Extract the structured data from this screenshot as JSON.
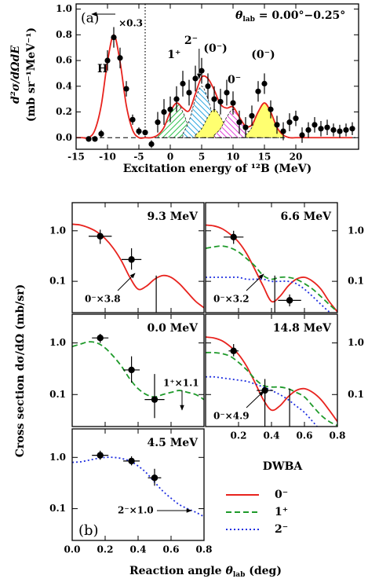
{
  "chart_data": [
    {
      "type": "spectrum",
      "label": "(a)",
      "title": {
        "symbol": "θ",
        "sub": "lab",
        "text": " = 0.00°−0.25°"
      },
      "xlabel": "Excitation energy of ¹²B (MeV)",
      "ylabel": [
        "d²σ/dΩdE",
        "(mb sr⁻¹MeV⁻¹)"
      ],
      "xlim": [
        -15,
        30
      ],
      "xticks": [
        -15,
        -10,
        -5,
        0,
        5,
        10,
        15,
        20
      ],
      "ylim": [
        -0.09,
        1.04
      ],
      "yticks": [
        {
          "value": 0,
          "label": "0.0"
        },
        0.2,
        0.4,
        0.6,
        0.8,
        {
          "value": 1,
          "label": "1.0"
        }
      ],
      "scale_note": {
        "label": "×0.3",
        "x": -4
      },
      "peak_label": "H",
      "data": {
        "x": [
          -13,
          -12,
          -11,
          -10,
          -9,
          -8,
          -7,
          -6,
          -5,
          -4,
          -3,
          -2,
          -1,
          0,
          1,
          2,
          3,
          4,
          5,
          6,
          7,
          8,
          9,
          10,
          11,
          12,
          13,
          14,
          15,
          16,
          17,
          18,
          19,
          20,
          21,
          22,
          23,
          24,
          25,
          26,
          27,
          28,
          29
        ],
        "values": [
          -0.01,
          -0.01,
          0.03,
          0.6,
          0.78,
          0.62,
          0.38,
          0.14,
          0.05,
          0.04,
          -0.05,
          0.12,
          0.2,
          0.22,
          0.3,
          0.42,
          0.35,
          0.46,
          0.52,
          0.4,
          0.3,
          0.28,
          0.35,
          0.27,
          0.12,
          0.08,
          0.17,
          0.36,
          0.42,
          0.22,
          0.1,
          0.05,
          0.12,
          0.15,
          0.02,
          0.06,
          0.1,
          0.07,
          0.08,
          0.06,
          0.05,
          0.06,
          0.07
        ],
        "errors": [
          0.02,
          0.02,
          0.03,
          0.08,
          0.08,
          0.08,
          0.06,
          0.04,
          0.03,
          0.02,
          0.03,
          0.08,
          0.1,
          0.1,
          0.1,
          0.1,
          0.1,
          0.1,
          0.1,
          0.1,
          0.1,
          0.1,
          0.1,
          0.09,
          0.09,
          0.08,
          0.08,
          0.08,
          0.08,
          0.07,
          0.07,
          0.07,
          0.07,
          0.06,
          0.06,
          0.06,
          0.06,
          0.06,
          0.06,
          0.05,
          0.05,
          0.05,
          0.05
        ]
      },
      "fit": {
        "color": "#e8231e",
        "x": [
          -15,
          -14,
          -13,
          -12,
          -11,
          -10,
          -9,
          -8,
          -7,
          -6,
          -5,
          -4,
          -3,
          -2,
          -1,
          0,
          1,
          2,
          3,
          4,
          5,
          6,
          7,
          8,
          9,
          10,
          11,
          12,
          13,
          14,
          15,
          16,
          17,
          18,
          19,
          20,
          21,
          22,
          23,
          24,
          25,
          26,
          27,
          28,
          29
        ],
        "values": [
          0,
          0,
          0,
          0.06,
          0.25,
          0.59,
          0.8,
          0.59,
          0.25,
          0.06,
          0,
          0,
          0,
          0.02,
          0.08,
          0.2,
          0.27,
          0.23,
          0.21,
          0.34,
          0.47,
          0.46,
          0.37,
          0.26,
          0.23,
          0.24,
          0.16,
          0.09,
          0.1,
          0.2,
          0.27,
          0.2,
          0.08,
          0.02,
          0,
          0,
          0,
          0,
          0,
          0,
          0,
          0,
          0,
          0,
          0
        ]
      },
      "components": [
        {
          "label": "1⁺",
          "color": "#2cc04a",
          "fill": "hatch",
          "x": [
            -2,
            -1,
            0,
            1,
            2,
            3,
            4
          ],
          "values": [
            0.02,
            0.08,
            0.2,
            0.27,
            0.2,
            0.08,
            0.02
          ]
        },
        {
          "label": "2⁻",
          "color": "#2aa6e0",
          "fill": "hatch",
          "x": [
            2,
            3,
            4,
            5,
            6,
            7,
            8
          ],
          "values": [
            0.03,
            0.13,
            0.3,
            0.4,
            0.3,
            0.13,
            0.03
          ]
        },
        {
          "label": "(0⁻)",
          "color": "#ffff70",
          "fill": "solid",
          "x": [
            4,
            5,
            6,
            7,
            8,
            9,
            10
          ],
          "values": [
            0.02,
            0.07,
            0.16,
            0.22,
            0.16,
            0.07,
            0.02
          ]
        },
        {
          "label": "0⁻",
          "color": "#e040d8",
          "fill": "hatch",
          "x": [
            7,
            8,
            9,
            10,
            11,
            12,
            13
          ],
          "values": [
            0.02,
            0.07,
            0.16,
            0.22,
            0.16,
            0.07,
            0.02
          ]
        },
        {
          "label": "(0⁻)",
          "color": "#ffff70",
          "fill": "solid",
          "x": [
            12,
            13,
            14,
            15,
            16,
            17,
            18
          ],
          "values": [
            0.02,
            0.08,
            0.2,
            0.27,
            0.2,
            0.08,
            0.02
          ]
        }
      ]
    },
    {
      "type": "angular",
      "label": "(b)",
      "xlabel": {
        "text": "Reaction angle ",
        "symbol": "θ",
        "sub": "lab",
        "after": " (deg)"
      },
      "ylabel": "Cross section dσ/dΩ (mb/sr)",
      "xlim": [
        0,
        0.8
      ],
      "xticks": [
        {
          "value": 0,
          "label": "0.0"
        },
        0.2,
        0.4,
        0.6,
        0.8
      ],
      "ylim": [
        0.024,
        3.6
      ],
      "yticks": [
        {
          "value": 1,
          "label": "1.0"
        },
        0.1
      ],
      "log_y": true,
      "legend": {
        "title": "DWBA",
        "entries": [
          {
            "name": "0⁻",
            "color": "#e8231e",
            "dash": "solid"
          },
          {
            "name": "1⁺",
            "color": "#1e9a2a",
            "dash": "dashed"
          },
          {
            "name": "2⁻",
            "color": "#2030e0",
            "dash": "dotted"
          }
        ]
      },
      "curve_x": [
        0,
        0.05,
        0.1,
        0.15,
        0.2,
        0.25,
        0.3,
        0.35,
        0.4,
        0.45,
        0.5,
        0.55,
        0.6,
        0.65,
        0.7,
        0.75,
        0.8
      ],
      "panels": [
        {
          "energy": "9.3 MeV",
          "note": "0⁻×3.8",
          "points": {
            "x": [
              0.17,
              0.36
            ],
            "xerr": [
              0.07,
              0.06
            ],
            "y": [
              0.78,
              0.27
            ],
            "ylo": [
              0.55,
              0.17
            ],
            "yhi": [
              1.05,
              0.45
            ]
          },
          "limits": {
            "x": [
              0.51
            ],
            "high": [
              0.13
            ]
          },
          "curves": [
            [
              1.35,
              1.3,
              1.15,
              0.95,
              0.7,
              0.45,
              0.25,
              0.12,
              0.07,
              0.08,
              0.11,
              0.13,
              0.12,
              0.09,
              0.06,
              0.04,
              0.03
            ],
            null,
            null
          ]
        },
        {
          "energy": "6.6 MeV",
          "note": "0⁻×3.2",
          "points": {
            "x": [
              0.17,
              0.51
            ],
            "xerr": [
              0.06,
              0.07
            ],
            "y": [
              0.75,
              0.042
            ],
            "ylo": [
              0.55,
              0.032
            ],
            "yhi": [
              1.0,
              0.055
            ]
          },
          "limits": {
            "x": [
              0.42
            ],
            "high": [
              0.13
            ]
          },
          "curves": [
            [
              1.3,
              1.25,
              1.1,
              0.85,
              0.6,
              0.35,
              0.17,
              0.08,
              0.04,
              0.05,
              0.08,
              0.11,
              0.12,
              0.1,
              0.07,
              0.04,
              0.025
            ],
            [
              0.45,
              0.48,
              0.5,
              0.46,
              0.38,
              0.28,
              0.2,
              0.13,
              0.11,
              0.12,
              0.12,
              0.11,
              0.09,
              0.07,
              0.05,
              0.035,
              0.025
            ],
            [
              0.12,
              0.12,
              0.12,
              0.12,
              0.12,
              0.11,
              0.11,
              0.11,
              0.1,
              0.1,
              0.1,
              0.09,
              0.07,
              0.05,
              0.035,
              0.025,
              0.02
            ]
          ]
        },
        {
          "energy": "0.0 MeV",
          "note": "1⁺×1.1",
          "points": {
            "x": [
              0.17,
              0.36,
              0.5
            ],
            "xerr": [
              0.05,
              0.05,
              0.06
            ],
            "y": [
              1.25,
              0.3,
              0.08
            ],
            "ylo": [
              1.0,
              0.17,
              0.035
            ],
            "yhi": [
              1.5,
              0.55,
              0.25
            ]
          },
          "limits": {
            "x": [],
            "high": []
          },
          "curves": [
            null,
            [
              0.85,
              0.95,
              1.05,
              1.0,
              0.8,
              0.55,
              0.35,
              0.2,
              0.13,
              0.1,
              0.09,
              0.1,
              0.11,
              0.12,
              0.11,
              0.1,
              0.08
            ],
            null
          ]
        },
        {
          "energy": "14.8 MeV",
          "note": "0⁻×4.9",
          "points": {
            "x": [
              0.17,
              0.36
            ],
            "xerr": [
              0.03,
              0.05
            ],
            "y": [
              0.7,
              0.12
            ],
            "ylo": [
              0.55,
              0.08
            ],
            "yhi": [
              0.95,
              0.2
            ]
          },
          "limits": {
            "x": [
              0.36,
              0.51
            ],
            "high": [
              0.12,
              0.13
            ]
          },
          "curves": [
            [
              1.3,
              1.25,
              1.1,
              0.85,
              0.6,
              0.35,
              0.17,
              0.08,
              0.05,
              0.06,
              0.09,
              0.12,
              0.13,
              0.11,
              0.08,
              0.05,
              0.03
            ],
            [
              0.65,
              0.65,
              0.62,
              0.55,
              0.42,
              0.3,
              0.2,
              0.15,
              0.14,
              0.14,
              0.13,
              0.11,
              0.09,
              0.06,
              0.04,
              0.03,
              0.025
            ],
            [
              0.22,
              0.22,
              0.21,
              0.2,
              0.19,
              0.18,
              0.16,
              0.14,
              0.12,
              0.1,
              0.08,
              0.06,
              0.045,
              0.03,
              0.02,
              0.015,
              0.012
            ]
          ]
        },
        {
          "energy": "4.5 MeV",
          "note": "2⁻×1.0",
          "points": {
            "x": [
              0.17,
              0.36,
              0.5
            ],
            "xerr": [
              0.05,
              0.05,
              0.04
            ],
            "y": [
              1.1,
              0.85,
              0.4
            ],
            "ylo": [
              0.9,
              0.7,
              0.28
            ],
            "yhi": [
              1.35,
              1.05,
              0.6
            ]
          },
          "limits": {
            "x": [],
            "high": []
          },
          "curves": [
            null,
            null,
            [
              0.8,
              0.82,
              0.88,
              0.95,
              1.0,
              1.0,
              0.95,
              0.85,
              0.68,
              0.5,
              0.33,
              0.22,
              0.16,
              0.12,
              0.1,
              0.085,
              0.07
            ]
          ]
        }
      ]
    }
  ]
}
